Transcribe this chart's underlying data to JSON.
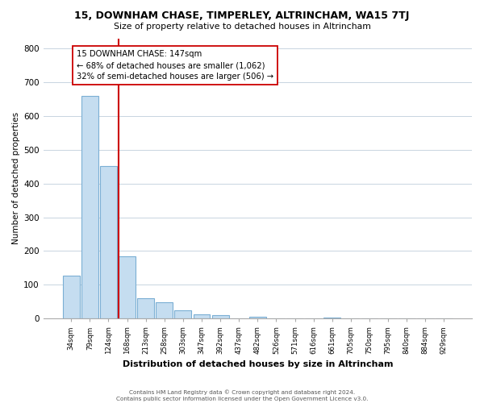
{
  "title": "15, DOWNHAM CHASE, TIMPERLEY, ALTRINCHAM, WA15 7TJ",
  "subtitle": "Size of property relative to detached houses in Altrincham",
  "xlabel": "Distribution of detached houses by size in Altrincham",
  "ylabel": "Number of detached properties",
  "bar_color": "#c5ddf0",
  "bar_edge_color": "#7bafd4",
  "categories": [
    "34sqm",
    "79sqm",
    "124sqm",
    "168sqm",
    "213sqm",
    "258sqm",
    "303sqm",
    "347sqm",
    "392sqm",
    "437sqm",
    "482sqm",
    "526sqm",
    "571sqm",
    "616sqm",
    "661sqm",
    "705sqm",
    "750sqm",
    "795sqm",
    "840sqm",
    "884sqm",
    "929sqm"
  ],
  "values": [
    128,
    660,
    452,
    185,
    60,
    48,
    25,
    13,
    10,
    0,
    5,
    0,
    0,
    0,
    3,
    0,
    0,
    0,
    0,
    0,
    0
  ],
  "ylim": [
    0,
    830
  ],
  "yticks": [
    0,
    100,
    200,
    300,
    400,
    500,
    600,
    700,
    800
  ],
  "vline_color": "#cc0000",
  "annotation_title": "15 DOWNHAM CHASE: 147sqm",
  "annotation_line1": "← 68% of detached houses are smaller (1,062)",
  "annotation_line2": "32% of semi-detached houses are larger (506) →",
  "footer_line1": "Contains HM Land Registry data © Crown copyright and database right 2024.",
  "footer_line2": "Contains public sector information licensed under the Open Government Licence v3.0.",
  "bg_color": "#ffffff",
  "grid_color": "#c8d4e0"
}
